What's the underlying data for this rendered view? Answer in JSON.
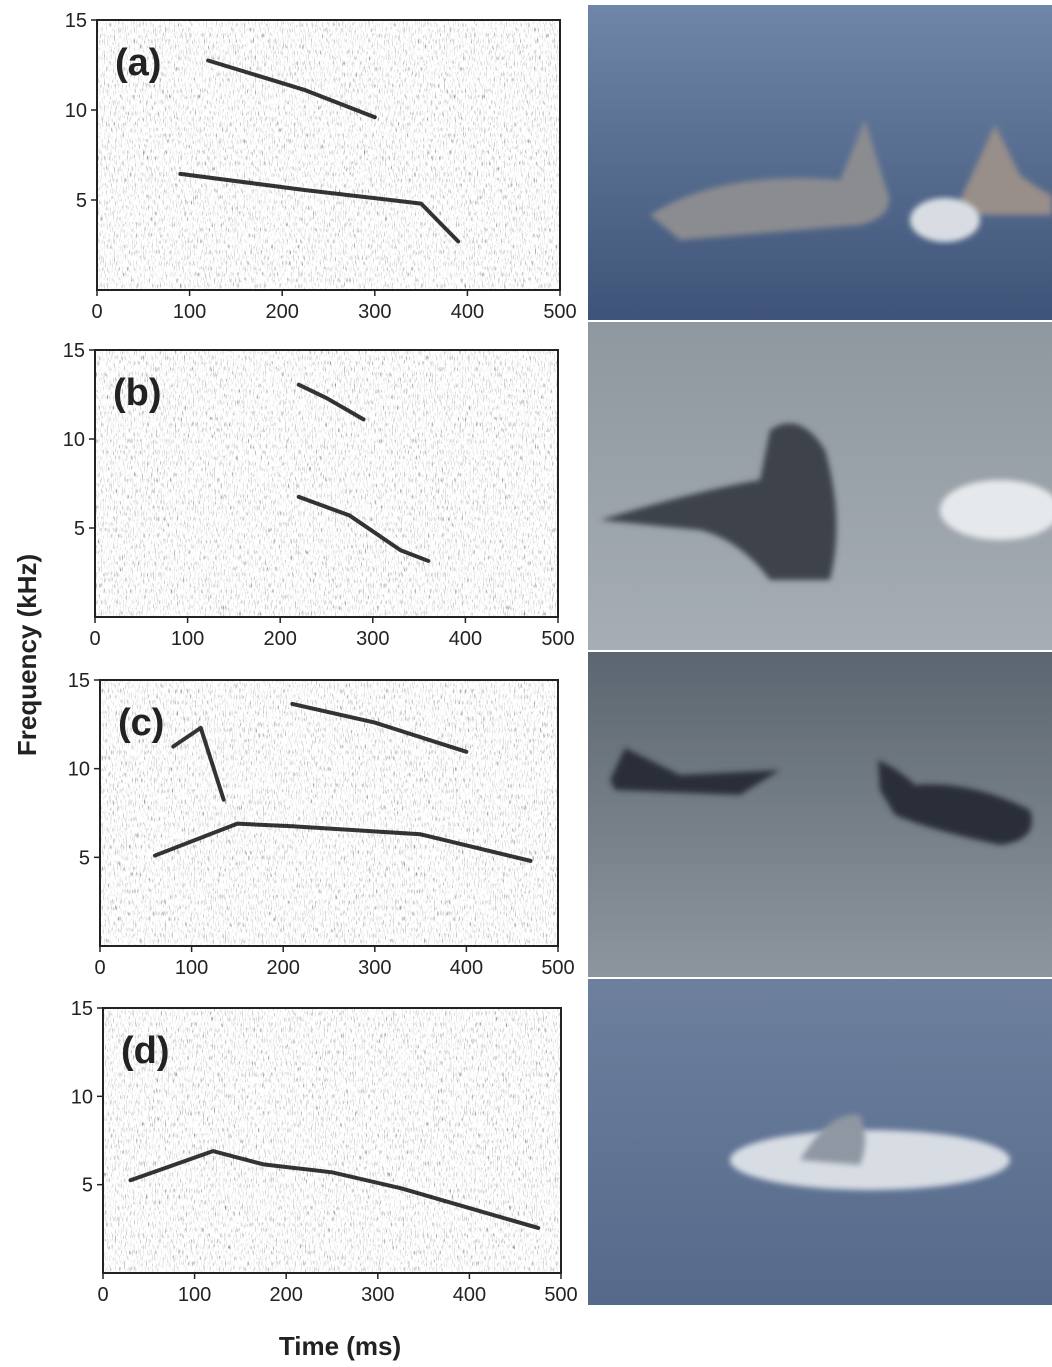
{
  "figure": {
    "y_label": "Frequency (kHz)",
    "x_label": "Time (ms)",
    "panels": [
      {
        "label": "(a)",
        "xlim": [
          0,
          500
        ],
        "ylim": [
          0,
          15
        ],
        "xticks": [
          0,
          100,
          200,
          300,
          400,
          500
        ],
        "yticks": [
          5,
          10,
          15
        ]
      },
      {
        "label": "(b)",
        "xlim": [
          0,
          500
        ],
        "ylim": [
          0,
          15
        ],
        "xticks": [
          0,
          100,
          200,
          300,
          400,
          500
        ],
        "yticks": [
          5,
          10,
          15
        ]
      },
      {
        "label": "(c)",
        "xlim": [
          0,
          500
        ],
        "ylim": [
          0,
          15
        ],
        "xticks": [
          0,
          100,
          200,
          300,
          400,
          500
        ],
        "yticks": [
          5,
          10,
          15
        ]
      },
      {
        "label": "(d)",
        "xlim": [
          0,
          500
        ],
        "ylim": [
          0,
          15
        ],
        "xticks": [
          0,
          100,
          200,
          300,
          400,
          500
        ],
        "yticks": [
          5,
          10,
          15
        ]
      }
    ]
  }
}
